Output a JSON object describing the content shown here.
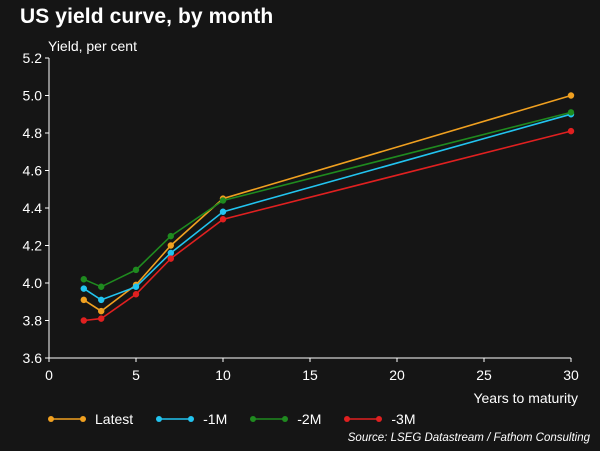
{
  "title": "US yield curve, by month",
  "subtitle": "Yield, per cent",
  "xlabel": "Years to maturity",
  "source": "Source: LSEG Datastream / Fathom Consulting",
  "chart_data": {
    "type": "line",
    "title": "US yield curve, by month",
    "ylabel": "Yield, per cent",
    "xlabel": "Years to maturity",
    "xlim": [
      0,
      30
    ],
    "ylim": [
      3.6,
      5.2
    ],
    "xticks": [
      0,
      5,
      10,
      15,
      20,
      25,
      30
    ],
    "yticks": [
      3.6,
      3.8,
      4.0,
      4.2,
      4.4,
      4.6,
      4.8,
      5.0,
      5.2
    ],
    "grid": false,
    "legend_position": "bottom",
    "x": [
      2,
      3,
      5,
      7,
      10,
      30
    ],
    "series": [
      {
        "name": "Latest",
        "color": "#f0a020",
        "values": [
          3.91,
          3.85,
          3.99,
          4.2,
          4.45,
          5.0
        ]
      },
      {
        "name": "-1M",
        "color": "#22c4f0",
        "values": [
          3.97,
          3.91,
          3.98,
          4.16,
          4.38,
          4.9
        ]
      },
      {
        "name": "-2M",
        "color": "#1f8a1f",
        "values": [
          4.02,
          3.98,
          4.07,
          4.25,
          4.44,
          4.91
        ]
      },
      {
        "name": "-3M",
        "color": "#e02020",
        "values": [
          3.8,
          3.81,
          3.94,
          4.13,
          4.34,
          4.81
        ]
      }
    ]
  }
}
